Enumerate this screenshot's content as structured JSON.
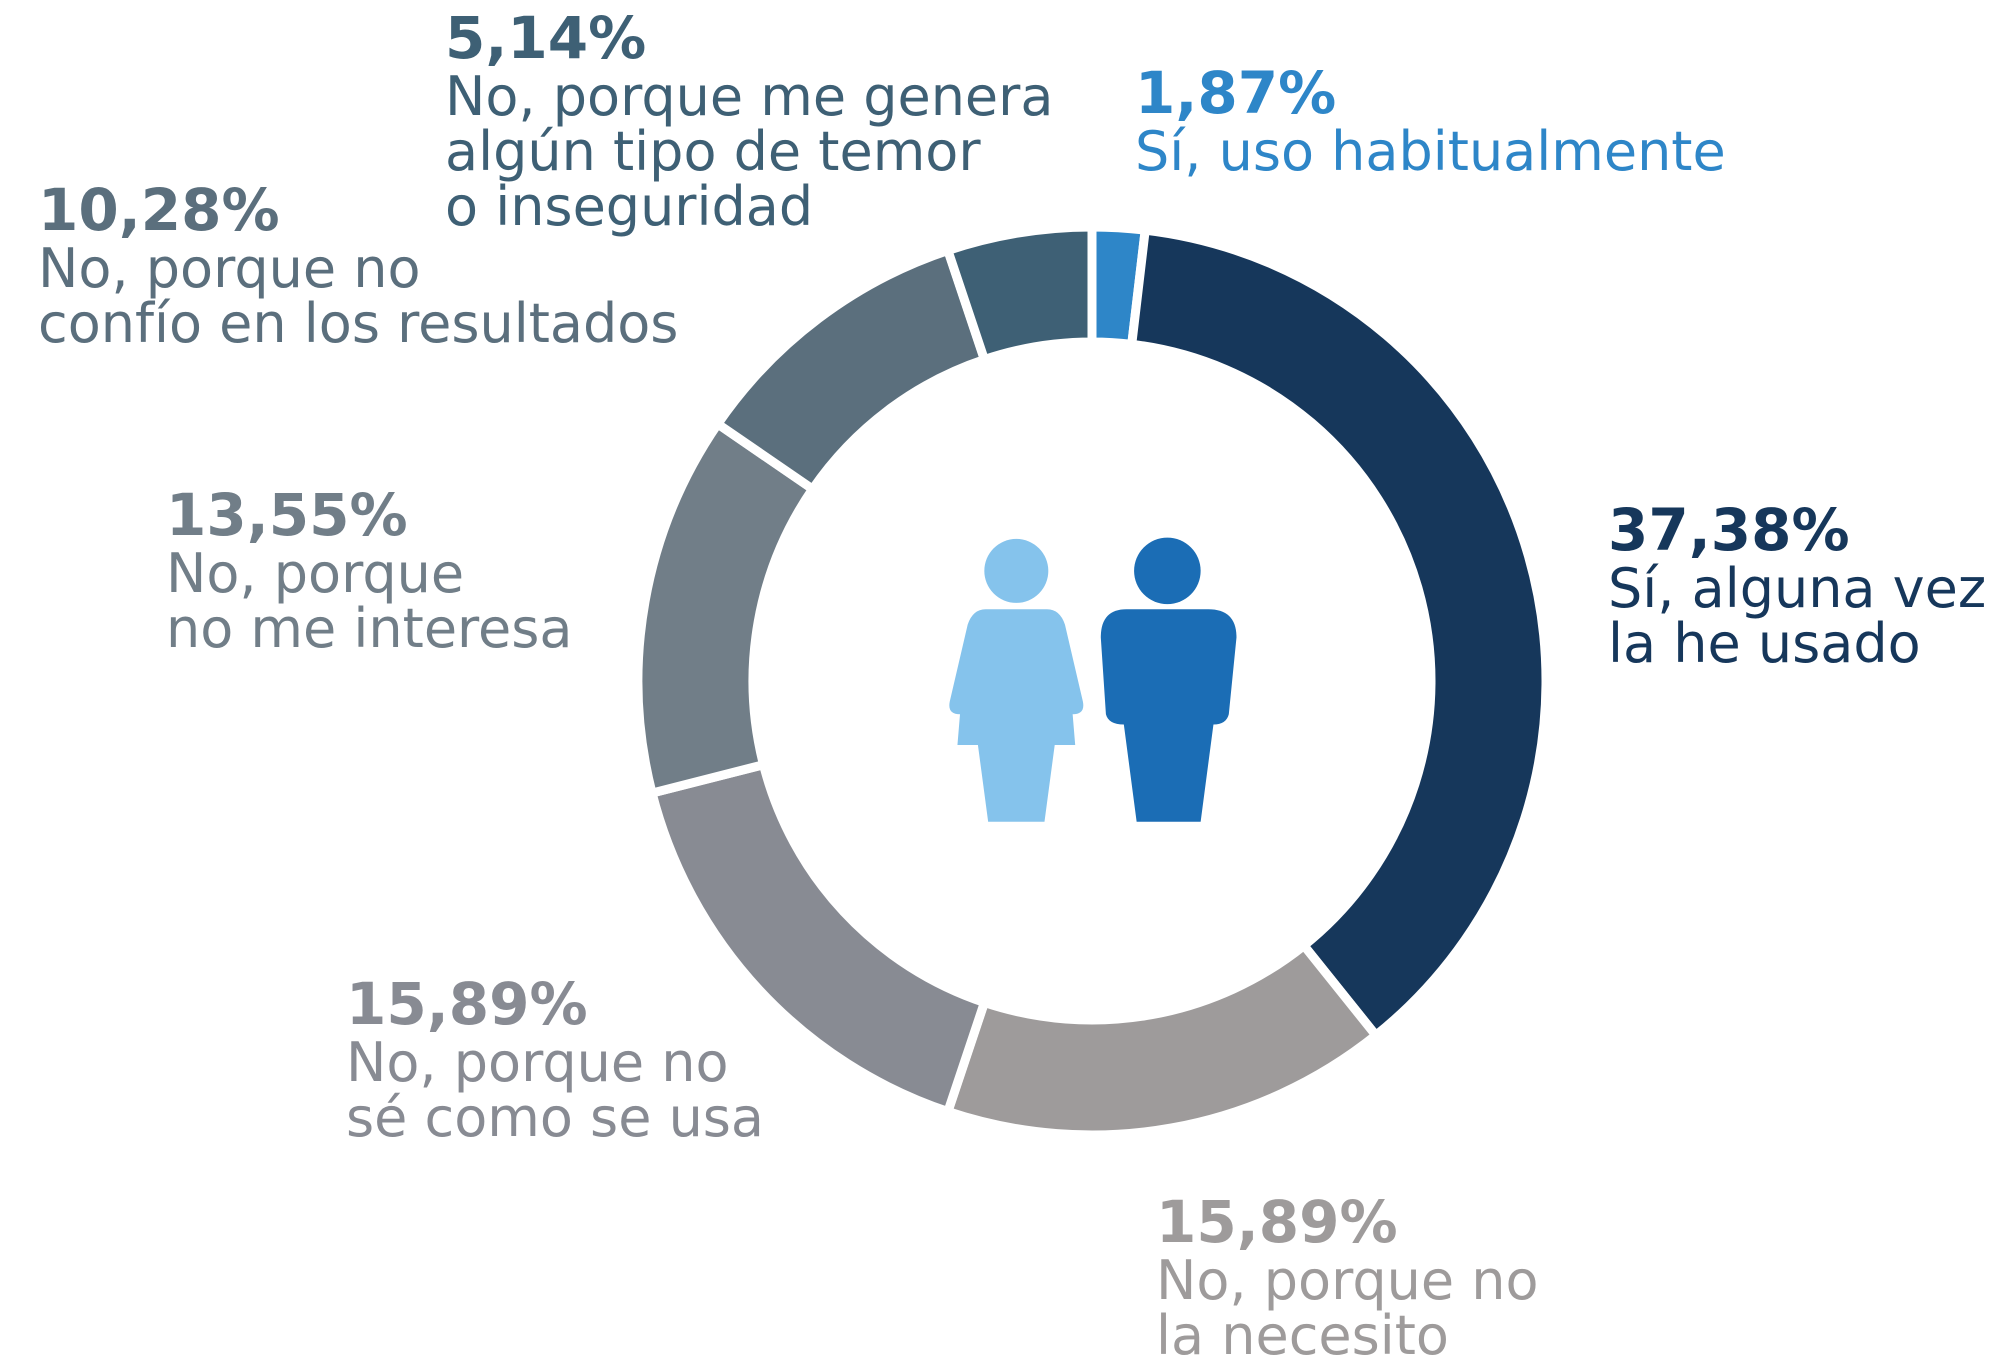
{
  "chart_data": {
    "type": "pie",
    "donut": true,
    "categories": [
      [
        "Sí, uso habitualmente"
      ],
      [
        "Sí, alguna vez",
        "la he usado"
      ],
      [
        "No, porque no",
        "la necesito"
      ],
      [
        "No, porque no",
        "sé como se usa"
      ],
      [
        "No, porque",
        "no me interesa"
      ],
      [
        "No, porque no",
        "confío en los resultados"
      ],
      [
        "No, porque me genera",
        "algún tipo de temor",
        "o inseguridad"
      ]
    ],
    "values": [
      1.87,
      37.38,
      15.89,
      15.89,
      13.55,
      10.28,
      5.14
    ],
    "value_labels": [
      "1,87%",
      "37,38%",
      "15,89%",
      "15,89%",
      "13,55%",
      "10,28%",
      "5,14%"
    ],
    "colors": [
      "#2e86c8",
      "#16375b",
      "#9e9b9b",
      "#888b93",
      "#717e88",
      "#5b6f7d",
      "#3e6075"
    ]
  }
}
